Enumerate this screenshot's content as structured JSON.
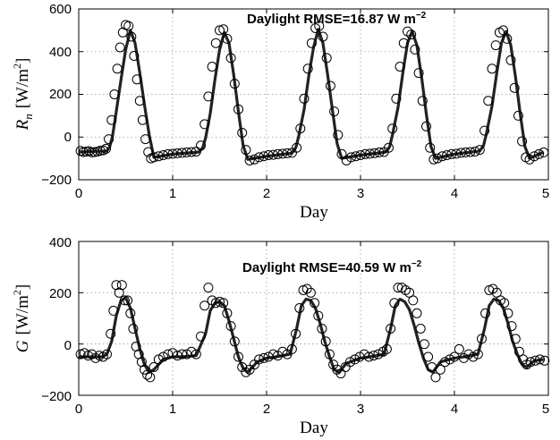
{
  "figure": {
    "panels": [
      {
        "ylabel_main": "R",
        "ylabel_sub": "n",
        "ylabel_unit": "[W/m",
        "ylabel_exp": "2",
        "ylabel_close": "]",
        "xlabel": "Day",
        "annotation_text": "Daylight RMSE=16.87 W m",
        "annotation_exp": "−2",
        "ytick_labels": [
          "600",
          "400",
          "200",
          "0",
          "−200"
        ],
        "xtick_labels": [
          "0",
          "1",
          "2",
          "3",
          "4",
          "5"
        ]
      },
      {
        "ylabel_main": "G",
        "ylabel_sub": "",
        "ylabel_unit": "[W/m",
        "ylabel_exp": "2",
        "ylabel_close": "]",
        "xlabel": "Day",
        "annotation_text": "Daylight RMSE=40.59 W m",
        "annotation_exp": "−2",
        "ytick_labels": [
          "400",
          "200",
          "0",
          "−200"
        ],
        "xtick_labels": [
          "0",
          "1",
          "2",
          "3",
          "4",
          "5"
        ]
      }
    ]
  },
  "chart_data": [
    {
      "type": "line",
      "ylabel": "R_n [W/m^2]",
      "xlabel": "Day",
      "xlim": [
        0,
        5
      ],
      "ylim": [
        -200,
        600
      ],
      "grid": true,
      "annotation": "Daylight RMSE=16.87 W m^-2",
      "series": [
        {
          "style": "solid-line",
          "x": [
            0,
            0.3,
            0.33,
            0.36,
            0.4,
            0.45,
            0.5,
            0.55,
            0.6,
            0.65,
            0.7,
            0.75,
            0.8,
            1.0,
            1.28,
            1.32,
            1.35,
            1.4,
            1.45,
            1.5,
            1.55,
            1.6,
            1.65,
            1.7,
            1.75,
            1.8,
            2.0,
            2.27,
            2.31,
            2.34,
            2.4,
            2.45,
            2.5,
            2.55,
            2.6,
            2.65,
            2.7,
            2.75,
            2.8,
            3.0,
            3.27,
            3.31,
            3.34,
            3.4,
            3.45,
            3.5,
            3.55,
            3.6,
            3.65,
            3.7,
            3.75,
            3.8,
            4.0,
            4.27,
            4.31,
            4.34,
            4.4,
            4.45,
            4.5,
            4.55,
            4.6,
            4.65,
            4.7,
            4.75,
            4.8,
            4.95
          ],
          "y": [
            -70,
            -65,
            -45,
            5,
            120,
            270,
            410,
            500,
            440,
            300,
            150,
            10,
            -95,
            -80,
            -70,
            -50,
            -5,
            110,
            270,
            410,
            490,
            440,
            290,
            120,
            -40,
            -105,
            -90,
            -75,
            -50,
            0,
            130,
            290,
            420,
            505,
            440,
            290,
            130,
            -30,
            -100,
            -85,
            -70,
            -45,
            10,
            140,
            300,
            440,
            495,
            430,
            280,
            110,
            -45,
            -100,
            -80,
            -65,
            -40,
            15,
            145,
            300,
            440,
            495,
            430,
            280,
            110,
            -45,
            -100,
            -70
          ]
        },
        {
          "style": "open-circle",
          "x": [
            0.02,
            0.05,
            0.08,
            0.11,
            0.14,
            0.17,
            0.2,
            0.23,
            0.26,
            0.29,
            0.32,
            0.35,
            0.38,
            0.41,
            0.44,
            0.47,
            0.5,
            0.53,
            0.56,
            0.59,
            0.62,
            0.65,
            0.68,
            0.71,
            0.74,
            0.77,
            0.8,
            0.85,
            0.9,
            0.95,
            1.0,
            1.05,
            1.1,
            1.15,
            1.2,
            1.25,
            1.3,
            1.34,
            1.38,
            1.42,
            1.46,
            1.5,
            1.54,
            1.58,
            1.62,
            1.66,
            1.7,
            1.74,
            1.78,
            1.82,
            1.87,
            1.92,
            1.97,
            2.02,
            2.07,
            2.12,
            2.17,
            2.22,
            2.27,
            2.32,
            2.36,
            2.4,
            2.44,
            2.48,
            2.52,
            2.56,
            2.6,
            2.64,
            2.68,
            2.72,
            2.76,
            2.8,
            2.85,
            2.9,
            2.95,
            3.0,
            3.05,
            3.1,
            3.15,
            3.2,
            3.25,
            3.3,
            3.34,
            3.38,
            3.42,
            3.46,
            3.5,
            3.54,
            3.58,
            3.62,
            3.66,
            3.7,
            3.74,
            3.78,
            3.82,
            3.87,
            3.92,
            3.97,
            4.02,
            4.07,
            4.12,
            4.17,
            4.22,
            4.27,
            4.32,
            4.36,
            4.4,
            4.44,
            4.48,
            4.52,
            4.56,
            4.6,
            4.64,
            4.68,
            4.72,
            4.76,
            4.8,
            4.85,
            4.9,
            4.95
          ],
          "y": [
            -65,
            -70,
            -68,
            -66,
            -72,
            -70,
            -68,
            -64,
            -62,
            -55,
            -10,
            80,
            200,
            320,
            420,
            490,
            525,
            520,
            470,
            380,
            270,
            170,
            80,
            -10,
            -70,
            -100,
            -95,
            -90,
            -85,
            -80,
            -78,
            -76,
            -74,
            -72,
            -70,
            -68,
            -40,
            60,
            190,
            330,
            440,
            500,
            505,
            460,
            370,
            250,
            130,
            20,
            -60,
            -110,
            -105,
            -95,
            -90,
            -85,
            -83,
            -80,
            -78,
            -76,
            -74,
            -50,
            40,
            180,
            320,
            440,
            510,
            520,
            470,
            370,
            240,
            120,
            10,
            -80,
            -110,
            -95,
            -90,
            -85,
            -80,
            -78,
            -75,
            -72,
            -70,
            -50,
            40,
            180,
            330,
            440,
            495,
            480,
            410,
            300,
            170,
            50,
            -50,
            -105,
            -100,
            -90,
            -85,
            -80,
            -78,
            -74,
            -72,
            -70,
            -68,
            -60,
            30,
            170,
            320,
            430,
            490,
            500,
            460,
            360,
            230,
            100,
            -20,
            -95,
            -105,
            -90,
            -80,
            -72
          ]
        }
      ]
    },
    {
      "type": "line",
      "ylabel": "G [W/m^2]",
      "xlabel": "Day",
      "xlim": [
        0,
        5
      ],
      "ylim": [
        -200,
        400
      ],
      "grid": true,
      "annotation": "Daylight RMSE=40.59 W m^-2",
      "series": [
        {
          "style": "solid-line",
          "x": [
            0,
            0.25,
            0.3,
            0.35,
            0.4,
            0.45,
            0.5,
            0.55,
            0.6,
            0.65,
            0.7,
            0.75,
            0.8,
            0.9,
            1.0,
            1.1,
            1.25,
            1.35,
            1.4,
            1.45,
            1.5,
            1.55,
            1.6,
            1.65,
            1.7,
            1.75,
            1.8,
            1.9,
            2.0,
            2.1,
            2.25,
            2.32,
            2.37,
            2.42,
            2.47,
            2.52,
            2.57,
            2.62,
            2.67,
            2.72,
            2.77,
            2.85,
            3.0,
            3.1,
            3.25,
            3.32,
            3.37,
            3.42,
            3.47,
            3.52,
            3.57,
            3.62,
            3.67,
            3.72,
            3.77,
            3.85,
            4.0,
            4.1,
            4.25,
            4.32,
            4.37,
            4.42,
            4.47,
            4.52,
            4.57,
            4.62,
            4.67,
            4.72,
            4.77,
            4.85,
            4.95
          ],
          "y": [
            -50,
            -50,
            -40,
            10,
            110,
            170,
            180,
            140,
            60,
            -20,
            -80,
            -110,
            -100,
            -60,
            -50,
            -50,
            -45,
            40,
            130,
            160,
            165,
            150,
            90,
            20,
            -50,
            -95,
            -110,
            -70,
            -55,
            -50,
            -40,
            60,
            150,
            175,
            170,
            140,
            80,
            10,
            -50,
            -100,
            -110,
            -75,
            -55,
            -50,
            -40,
            60,
            150,
            175,
            165,
            135,
            75,
            5,
            -55,
            -100,
            -110,
            -70,
            -55,
            -50,
            -40,
            60,
            150,
            175,
            170,
            140,
            80,
            10,
            -40,
            -80,
            -90,
            -65,
            -60
          ]
        },
        {
          "style": "open-circle",
          "x": [
            0.02,
            0.06,
            0.1,
            0.14,
            0.18,
            0.22,
            0.26,
            0.3,
            0.34,
            0.37,
            0.4,
            0.43,
            0.46,
            0.49,
            0.52,
            0.55,
            0.58,
            0.61,
            0.64,
            0.67,
            0.7,
            0.73,
            0.76,
            0.8,
            0.85,
            0.9,
            0.95,
            1.0,
            1.05,
            1.1,
            1.15,
            1.2,
            1.25,
            1.3,
            1.34,
            1.38,
            1.42,
            1.46,
            1.5,
            1.54,
            1.58,
            1.62,
            1.66,
            1.7,
            1.74,
            1.78,
            1.82,
            1.87,
            1.92,
            1.97,
            2.02,
            2.07,
            2.12,
            2.17,
            2.22,
            2.27,
            2.31,
            2.35,
            2.39,
            2.43,
            2.47,
            2.51,
            2.55,
            2.59,
            2.63,
            2.67,
            2.71,
            2.75,
            2.79,
            2.84,
            2.89,
            2.94,
            2.99,
            3.04,
            3.09,
            3.14,
            3.19,
            3.24,
            3.28,
            3.32,
            3.36,
            3.4,
            3.44,
            3.48,
            3.52,
            3.56,
            3.6,
            3.64,
            3.68,
            3.72,
            3.76,
            3.8,
            3.85,
            3.9,
            3.95,
            4.0,
            4.05,
            4.1,
            4.15,
            4.2,
            4.25,
            4.29,
            4.33,
            4.37,
            4.41,
            4.45,
            4.49,
            4.53,
            4.57,
            4.61,
            4.65,
            4.69,
            4.73,
            4.77,
            4.81,
            4.86,
            4.91,
            4.96
          ],
          "y": [
            -40,
            -35,
            -45,
            -40,
            -55,
            -45,
            -50,
            -40,
            40,
            130,
            230,
            200,
            230,
            170,
            170,
            120,
            60,
            -10,
            -40,
            -70,
            -100,
            -120,
            -130,
            -90,
            -60,
            -50,
            -40,
            -35,
            -45,
            -40,
            -40,
            -30,
            -40,
            30,
            150,
            220,
            170,
            160,
            165,
            160,
            120,
            70,
            10,
            -50,
            -90,
            -110,
            -100,
            -80,
            -60,
            -55,
            -50,
            -40,
            -45,
            -30,
            -40,
            -20,
            40,
            140,
            210,
            215,
            200,
            160,
            110,
            60,
            10,
            -40,
            -80,
            -100,
            -115,
            -90,
            -70,
            -60,
            -50,
            -40,
            -50,
            -45,
            -40,
            -30,
            -20,
            60,
            160,
            220,
            220,
            210,
            200,
            170,
            120,
            60,
            0,
            -50,
            -90,
            -130,
            -100,
            -70,
            -60,
            -50,
            -20,
            -55,
            -40,
            -50,
            -40,
            20,
            120,
            210,
            215,
            200,
            170,
            160,
            120,
            70,
            20,
            -30,
            -60,
            -80,
            -70,
            -65,
            -60,
            -65
          ]
        }
      ]
    }
  ]
}
